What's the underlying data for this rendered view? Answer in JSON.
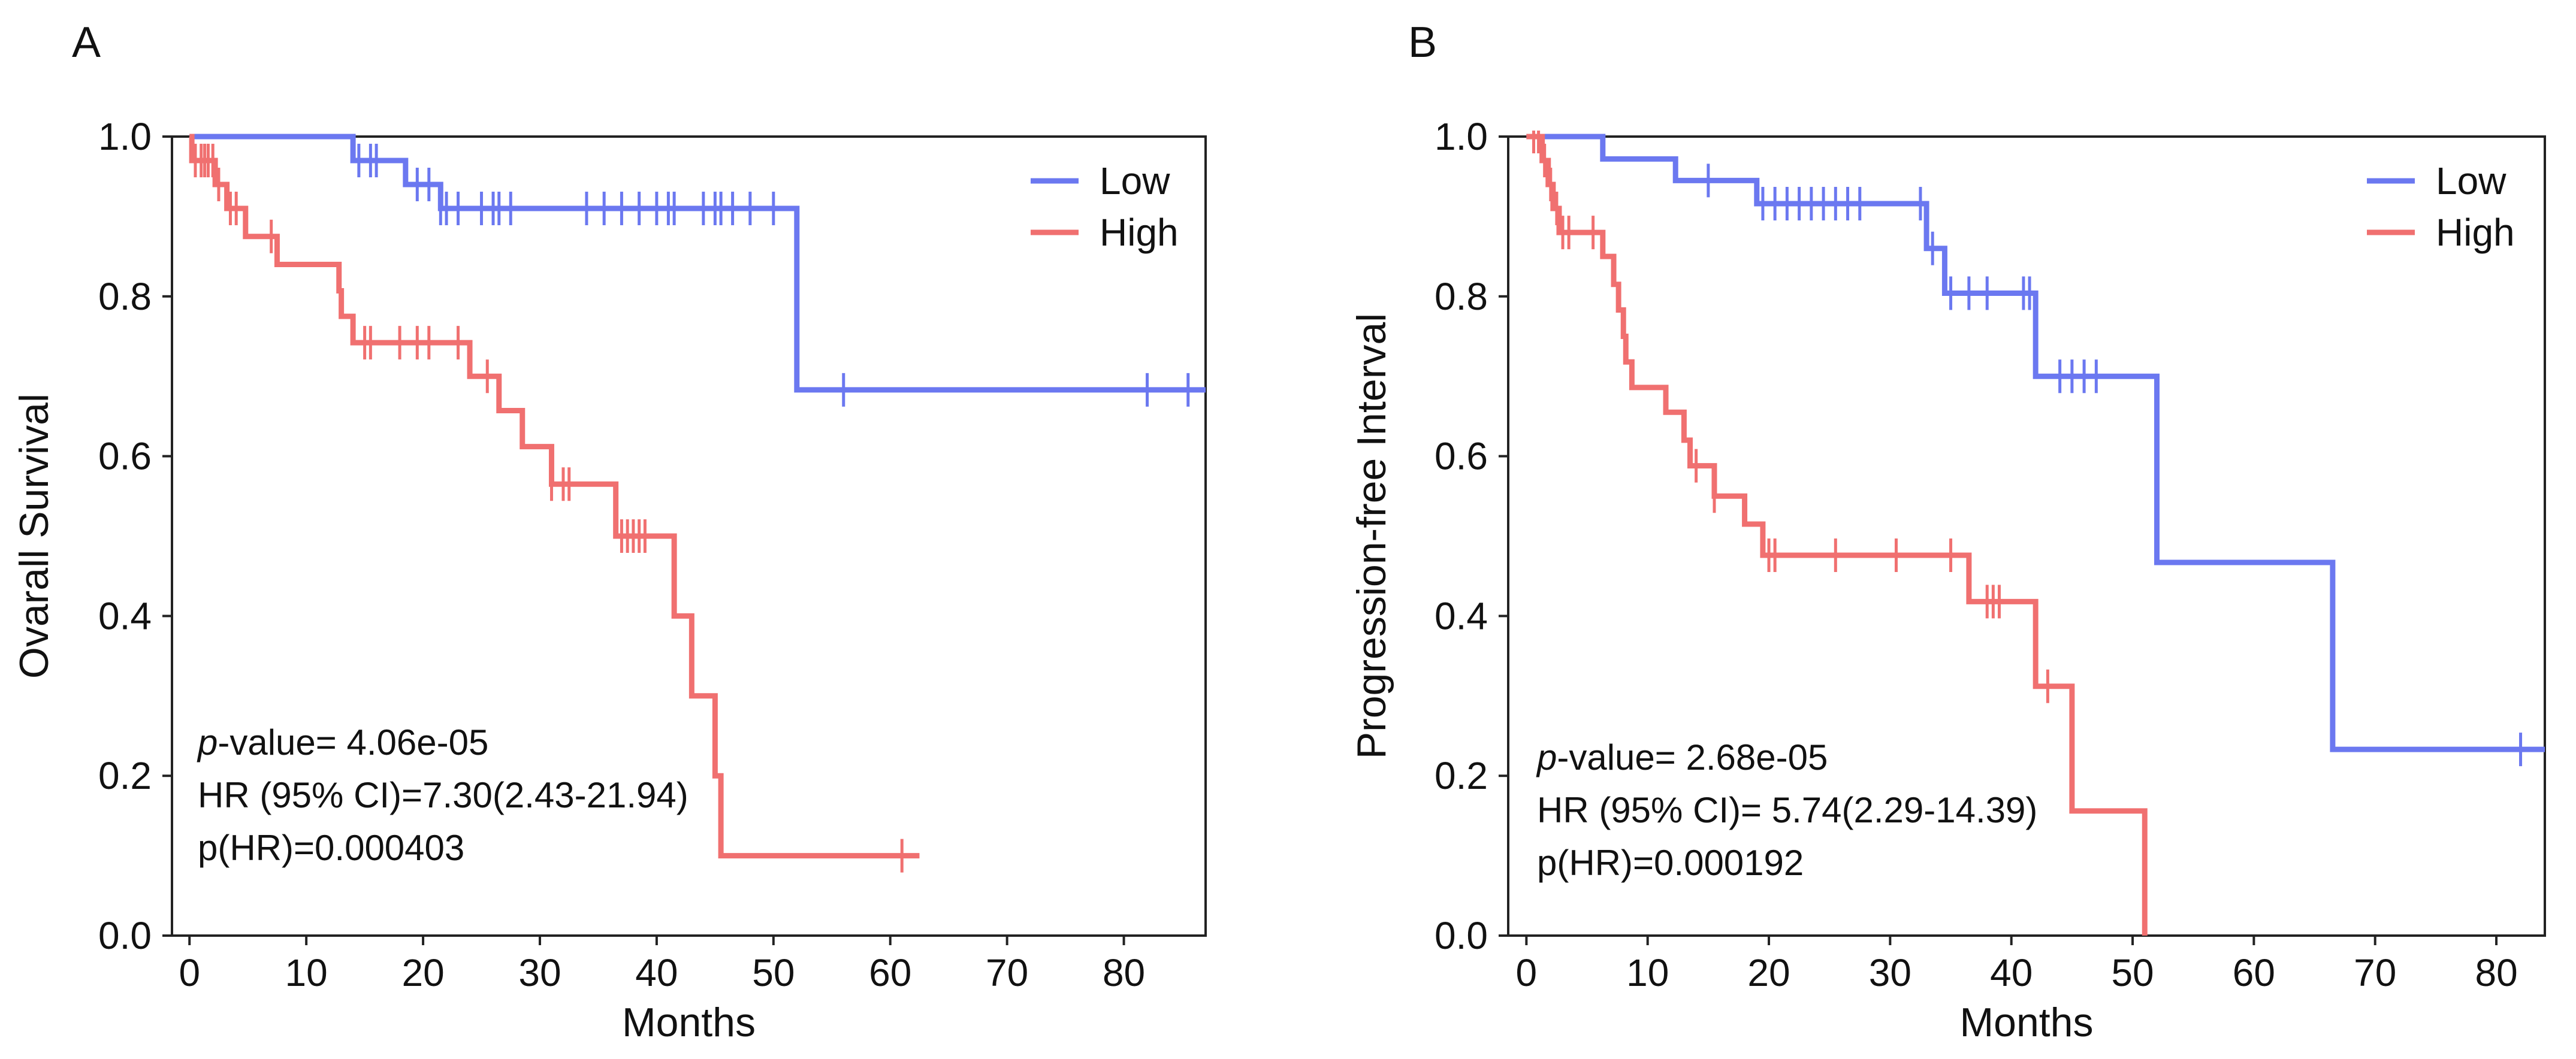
{
  "chart_data": [
    {
      "type": "line",
      "panel_label": "A",
      "xlabel": "Months",
      "ylabel": "Ovarall Survival",
      "xlim": [
        -1.5,
        87
      ],
      "ylim": [
        0,
        1.0
      ],
      "xticks": [
        0,
        10,
        20,
        30,
        40,
        50,
        60,
        70,
        80
      ],
      "yticks": [
        0.0,
        0.2,
        0.4,
        0.6,
        0.8,
        1.0
      ],
      "xtick_labels": [
        "0",
        "10",
        "20",
        "30",
        "40",
        "50",
        "60",
        "70",
        "80"
      ],
      "ytick_labels": [
        "0.0",
        "0.2",
        "0.4",
        "0.6",
        "0.8",
        "1.0"
      ],
      "grid": false,
      "legend_position": "top-right",
      "legend": [
        {
          "label": "Low",
          "color": "#6b78f0"
        },
        {
          "label": "High",
          "color": "#f07070"
        }
      ],
      "annotations": {
        "p_label": "p",
        "p_text": "-value= 4.06e-05",
        "hr": "HR (95% CI)=7.30(2.43-21.94)",
        "phr": "p(HR)=0.000403"
      },
      "series": [
        {
          "name": "Low",
          "color": "#6b78f0",
          "steps": [
            [
              0,
              1.0
            ],
            [
              14,
              0.97
            ],
            [
              18.5,
              0.94
            ],
            [
              21.5,
              0.91
            ],
            [
              52,
              0.683
            ],
            [
              87,
              0.683
            ]
          ],
          "censor_times": [
            14.5,
            15.5,
            16,
            19.5,
            20.5,
            21.5,
            22,
            23,
            25,
            26,
            26.5,
            27.5,
            34,
            35.5,
            37,
            38.5,
            40,
            41,
            41.5,
            44,
            45,
            45.5,
            46.5,
            48,
            50,
            56,
            82,
            85.5
          ]
        },
        {
          "name": "High",
          "color": "#f07070",
          "steps": [
            [
              0,
              1.0
            ],
            [
              0.2,
              0.97
            ],
            [
              2.2,
              0.94
            ],
            [
              3.2,
              0.91
            ],
            [
              4.8,
              0.875
            ],
            [
              7.5,
              0.84
            ],
            [
              12.8,
              0.807
            ],
            [
              13,
              0.775
            ],
            [
              14,
              0.742
            ],
            [
              24,
              0.7
            ],
            [
              26.5,
              0.657
            ],
            [
              28.5,
              0.612
            ],
            [
              31,
              0.565
            ],
            [
              36.5,
              0.5
            ],
            [
              41.5,
              0.4
            ],
            [
              43,
              0.3
            ],
            [
              45,
              0.2
            ],
            [
              45.5,
              0.1
            ],
            [
              62.5,
              0.1
            ]
          ],
          "censor_times": [
            0.5,
            1,
            1.3,
            1.6,
            2,
            2.5,
            3.5,
            4,
            7,
            15,
            15.5,
            18,
            19.5,
            20.5,
            23,
            25.5,
            31,
            32,
            32.5,
            37,
            37.5,
            38,
            38.5,
            39,
            61
          ]
        }
      ]
    },
    {
      "type": "line",
      "panel_label": "B",
      "xlabel": "Months",
      "ylabel": "Progression-free Interval",
      "xlim": [
        -1.5,
        84
      ],
      "ylim": [
        0,
        1.0
      ],
      "xticks": [
        0,
        10,
        20,
        30,
        40,
        50,
        60,
        70,
        80
      ],
      "yticks": [
        0.0,
        0.2,
        0.4,
        0.6,
        0.8,
        1.0
      ],
      "xtick_labels": [
        "0",
        "10",
        "20",
        "30",
        "40",
        "50",
        "60",
        "70",
        "80"
      ],
      "ytick_labels": [
        "0.0",
        "0.2",
        "0.4",
        "0.6",
        "0.8",
        "1.0"
      ],
      "grid": false,
      "legend_position": "top-right",
      "legend": [
        {
          "label": "Low",
          "color": "#6b78f0"
        },
        {
          "label": "High",
          "color": "#f07070"
        }
      ],
      "annotations": {
        "p_label": "p",
        "p_text": "-value= 2.68e-05",
        "hr": "HR (95% CI)= 5.74(2.29-14.39)",
        "phr": "p(HR)=0.000192"
      },
      "series": [
        {
          "name": "Low",
          "color": "#6b78f0",
          "steps": [
            [
              0,
              1.0
            ],
            [
              6.3,
              0.972
            ],
            [
              12.3,
              0.945
            ],
            [
              19,
              0.916
            ],
            [
              33,
              0.86
            ],
            [
              34.5,
              0.804
            ],
            [
              42,
              0.7
            ],
            [
              52,
              0.467
            ],
            [
              66.5,
              0.233
            ],
            [
              84,
              0.233
            ]
          ],
          "censor_times": [
            15,
            19.5,
            20.5,
            21.5,
            22.5,
            23.5,
            24.5,
            25.5,
            26.5,
            27.5,
            32.5,
            33.5,
            35,
            36.5,
            38,
            41,
            41.5,
            44,
            45,
            46,
            47,
            82
          ]
        },
        {
          "name": "High",
          "color": "#f07070",
          "steps": [
            [
              0,
              1.0
            ],
            [
              1.3,
              0.97
            ],
            [
              1.8,
              0.94
            ],
            [
              2.2,
              0.91
            ],
            [
              2.7,
              0.88
            ],
            [
              6.3,
              0.85
            ],
            [
              7.2,
              0.815
            ],
            [
              7.6,
              0.783
            ],
            [
              8,
              0.75
            ],
            [
              8.2,
              0.718
            ],
            [
              8.7,
              0.686
            ],
            [
              11.5,
              0.655
            ],
            [
              13,
              0.62
            ],
            [
              13.5,
              0.588
            ],
            [
              15.5,
              0.55
            ],
            [
              18,
              0.515
            ],
            [
              19.5,
              0.476
            ],
            [
              36.5,
              0.418
            ],
            [
              42,
              0.312
            ],
            [
              45,
              0.156
            ],
            [
              51,
              0.0
            ]
          ],
          "censor_times": [
            0.6,
            1,
            1.5,
            2,
            2.5,
            3,
            3.5,
            5.5,
            14,
            15.5,
            20,
            20.5,
            25.5,
            30.5,
            35,
            38,
            38.5,
            39,
            43
          ]
        }
      ]
    }
  ]
}
